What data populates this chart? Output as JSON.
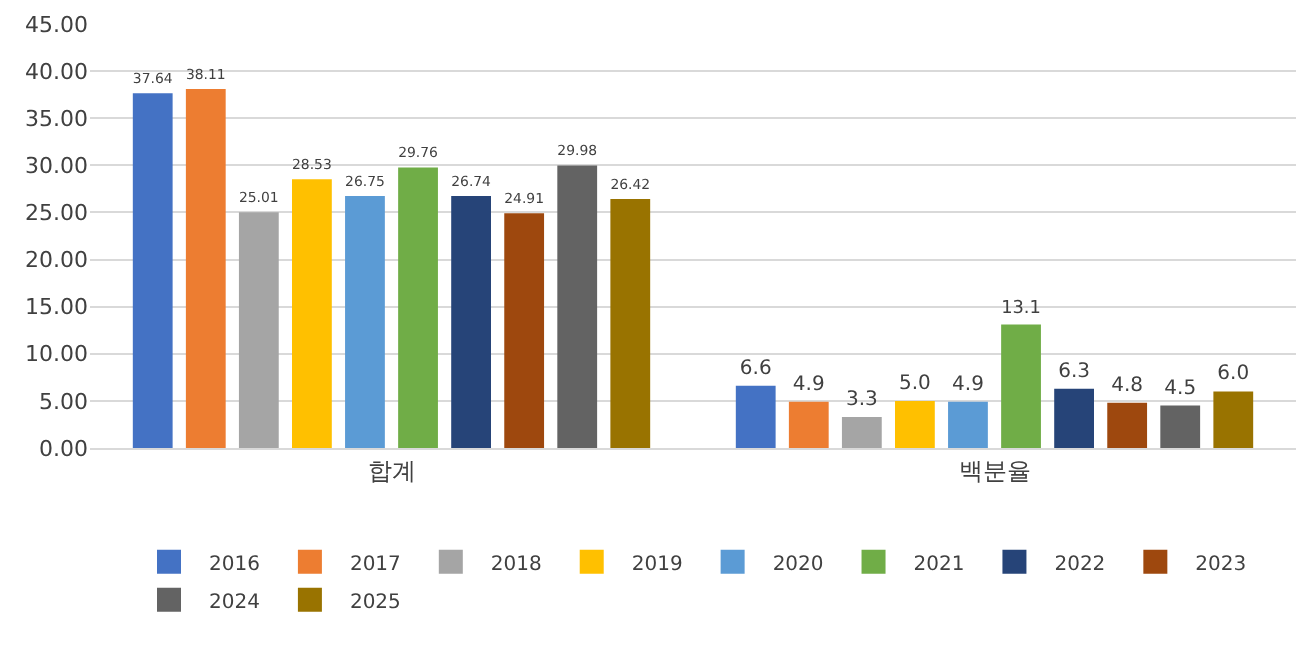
{
  "chart_data": {
    "type": "bar",
    "categories": [
      "합계",
      "백분율"
    ],
    "series": [
      {
        "name": "2016",
        "color": "#4472c4",
        "values": [
          37.64,
          6.6
        ],
        "value_labels": [
          "37.64",
          "6.6"
        ]
      },
      {
        "name": "2017",
        "color": "#ed7d31",
        "values": [
          38.11,
          4.9
        ],
        "value_labels": [
          "38.11",
          "4.9"
        ]
      },
      {
        "name": "2018",
        "color": "#a5a5a5",
        "values": [
          25.01,
          3.3
        ],
        "value_labels": [
          "25.01",
          "3.3"
        ]
      },
      {
        "name": "2019",
        "color": "#ffc000",
        "values": [
          28.53,
          5.0
        ],
        "value_labels": [
          "28.53",
          "5.0"
        ]
      },
      {
        "name": "2020",
        "color": "#5b9bd5",
        "values": [
          26.75,
          4.9
        ],
        "value_labels": [
          "26.75",
          "4.9"
        ]
      },
      {
        "name": "2021",
        "color": "#70ad47",
        "values": [
          29.76,
          13.1
        ],
        "value_labels": [
          "29.76",
          "13.1"
        ]
      },
      {
        "name": "2022",
        "color": "#264478",
        "values": [
          26.74,
          6.3
        ],
        "value_labels": [
          "26.74",
          "6.3"
        ]
      },
      {
        "name": "2023",
        "color": "#9e480e",
        "values": [
          24.91,
          4.8
        ],
        "value_labels": [
          "24.91",
          "4.8"
        ]
      },
      {
        "name": "2024",
        "color": "#636363",
        "values": [
          29.98,
          4.5
        ],
        "value_labels": [
          "29.98",
          "4.5"
        ]
      },
      {
        "name": "2025",
        "color": "#997300",
        "values": [
          26.42,
          6.0
        ],
        "value_labels": [
          "26.42",
          "6.0"
        ]
      }
    ],
    "ylim": [
      0,
      45
    ],
    "yticks": [
      {
        "value": 0,
        "label": "0.00"
      },
      {
        "value": 5,
        "label": "5.00"
      },
      {
        "value": 10,
        "label": "10.00"
      },
      {
        "value": 15,
        "label": "15.00"
      },
      {
        "value": 20,
        "label": "20.00"
      },
      {
        "value": 25,
        "label": "25.00"
      },
      {
        "value": 30,
        "label": "30.00"
      },
      {
        "value": 35,
        "label": "35.00"
      },
      {
        "value": 40,
        "label": "40.00"
      },
      {
        "value": 45,
        "label": "45.00"
      }
    ],
    "grid": "y",
    "legend": "bottom"
  }
}
